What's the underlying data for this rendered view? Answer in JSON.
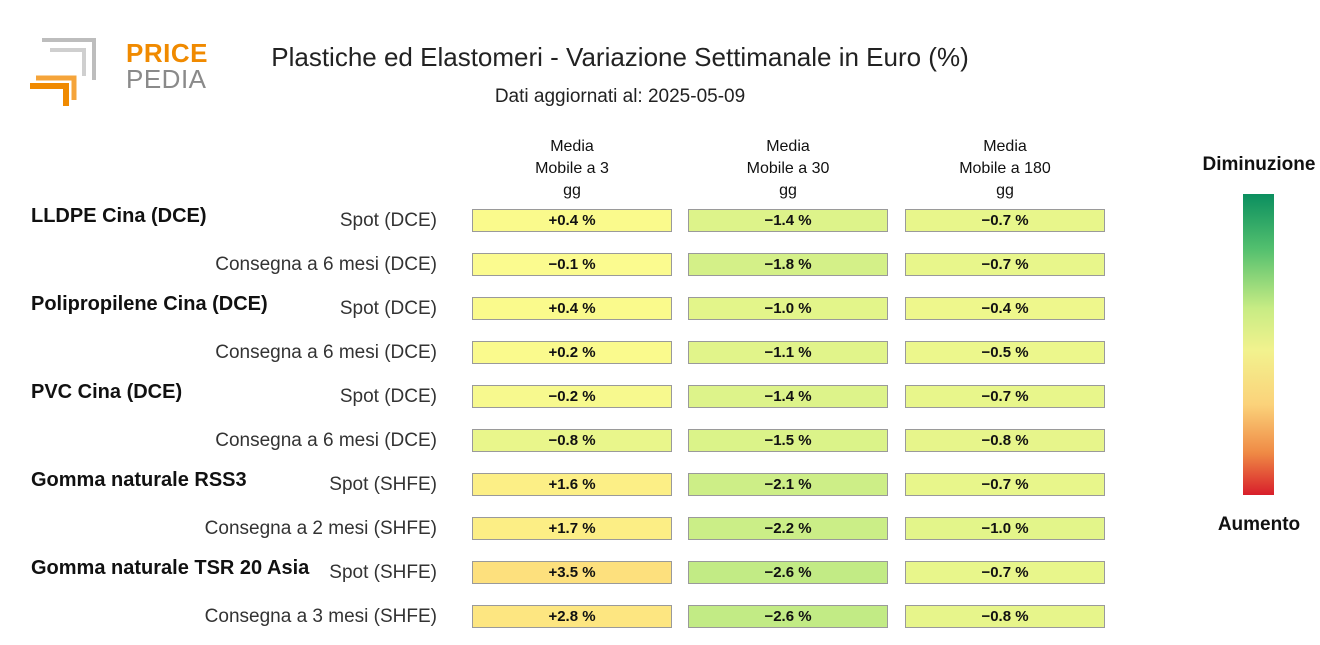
{
  "logo": {
    "line1": "PRICE",
    "line2": "PEDIA"
  },
  "title": "Plastiche ed Elastomeri - Variazione Settimanale in Euro (%)",
  "subtitle": "Dati aggiornati al: 2025-05-09",
  "legend": {
    "top": "Diminuzione",
    "bottom": "Aumento"
  },
  "chart_data": {
    "type": "table",
    "columns": [
      "Media\nMobile a 3\ngg",
      "Media\nMobile a 30\ngg",
      "Media\nMobile a 180\ngg"
    ],
    "groups": [
      {
        "name": "LLDPE Cina (DCE)",
        "rows": [
          {
            "label": "Spot (DCE)",
            "values": [
              "+0.4 %",
              "−1.4 %",
              "−0.7 %"
            ],
            "colors": [
              "#fafa8c",
              "#ddf38a",
              "#e8f68b"
            ]
          },
          {
            "label": "Consegna a 6 mesi (DCE)",
            "values": [
              "−0.1 %",
              "−1.8 %",
              "−0.7 %"
            ],
            "colors": [
              "#fbfb8f",
              "#d4f088",
              "#e8f68b"
            ]
          }
        ]
      },
      {
        "name": "Polipropilene Cina (DCE)",
        "rows": [
          {
            "label": "Spot (DCE)",
            "values": [
              "+0.4 %",
              "−1.0 %",
              "−0.4 %"
            ],
            "colors": [
              "#fafa8c",
              "#e3f58a",
              "#eef78c"
            ]
          },
          {
            "label": "Consegna a 6 mesi (DCE)",
            "values": [
              "+0.2 %",
              "−1.1 %",
              "−0.5 %"
            ],
            "colors": [
              "#fafa8d",
              "#e1f48a",
              "#ecf78c"
            ]
          }
        ]
      },
      {
        "name": "PVC Cina (DCE)",
        "rows": [
          {
            "label": "Spot (DCE)",
            "values": [
              "−0.2 %",
              "−1.4 %",
              "−0.7 %"
            ],
            "colors": [
              "#f7f98e",
              "#ddf38a",
              "#e8f68b"
            ]
          },
          {
            "label": "Consegna a 6 mesi (DCE)",
            "values": [
              "−0.8 %",
              "−1.5 %",
              "−0.8 %"
            ],
            "colors": [
              "#e9f68b",
              "#dbf389",
              "#e7f58b"
            ]
          }
        ]
      },
      {
        "name": "Gomma naturale RSS3",
        "rows": [
          {
            "label": "Spot (SHFE)",
            "values": [
              "+1.6 %",
              "−2.1 %",
              "−0.7 %"
            ],
            "colors": [
              "#fcef86",
              "#cdee87",
              "#e8f68b"
            ]
          },
          {
            "label": "Consegna a 2 mesi (SHFE)",
            "values": [
              "+1.7 %",
              "−2.2 %",
              "−1.0 %"
            ],
            "colors": [
              "#fcee85",
              "#cbee87",
              "#e3f58a"
            ]
          }
        ]
      },
      {
        "name": "Gomma naturale TSR 20 Asia",
        "rows": [
          {
            "label": "Spot (SHFE)",
            "values": [
              "+3.5 %",
              "−2.6 %",
              "−0.7 %"
            ],
            "colors": [
              "#fde07d",
              "#c2eb85",
              "#e8f68b"
            ]
          },
          {
            "label": "Consegna a 3 mesi (SHFE)",
            "values": [
              "+2.8 %",
              "−2.6 %",
              "−0.8 %"
            ],
            "colors": [
              "#fde681",
              "#c2eb85",
              "#e7f58b"
            ]
          }
        ]
      }
    ],
    "colorscale": [
      "#0b8f5f",
      "#52bf6e",
      "#c8ec84",
      "#f2f28e",
      "#fbd27a",
      "#ef8a45",
      "#d81e2b"
    ]
  }
}
